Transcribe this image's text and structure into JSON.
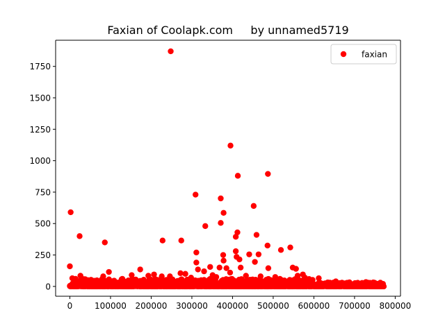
{
  "chart_data": {
    "type": "scatter",
    "title": "Faxian of Coolapk.com     by unnamed5719",
    "xlabel": "",
    "ylabel": "",
    "xlim": [
      -35000,
      813000
    ],
    "ylim": [
      -78,
      1958
    ],
    "x_ticks": [
      0,
      100000,
      200000,
      300000,
      400000,
      500000,
      600000,
      700000,
      800000
    ],
    "x_tick_labels": [
      "0",
      "100000",
      "200000",
      "300000",
      "400000",
      "500000",
      "600000",
      "700000",
      "800000"
    ],
    "y_ticks": [
      0,
      250,
      500,
      750,
      1000,
      1250,
      1500,
      1750
    ],
    "y_tick_labels": [
      "0",
      "250",
      "500",
      "750",
      "1000",
      "1250",
      "1500",
      "1750"
    ],
    "grid": false,
    "legend": {
      "position": "top-right",
      "entries": [
        "faxian"
      ]
    },
    "series": [
      {
        "name": "faxian",
        "color": "#ff0000",
        "marker": "circle",
        "points": [
          [
            248000,
            1870
          ],
          [
            395000,
            1120
          ],
          [
            487000,
            895
          ],
          [
            413000,
            880
          ],
          [
            309000,
            730
          ],
          [
            371000,
            700
          ],
          [
            452000,
            640
          ],
          [
            2000,
            590
          ],
          [
            378000,
            585
          ],
          [
            371000,
            505
          ],
          [
            333000,
            480
          ],
          [
            412000,
            430
          ],
          [
            459000,
            410
          ],
          [
            24000,
            400
          ],
          [
            408000,
            395
          ],
          [
            228000,
            365
          ],
          [
            274000,
            365
          ],
          [
            86000,
            350
          ],
          [
            486000,
            325
          ],
          [
            542000,
            310
          ],
          [
            519000,
            290
          ],
          [
            408000,
            280
          ],
          [
            311000,
            270
          ],
          [
            441000,
            255
          ],
          [
            464000,
            255
          ],
          [
            377000,
            250
          ],
          [
            410000,
            235
          ],
          [
            417000,
            215
          ],
          [
            378000,
            205
          ],
          [
            455000,
            195
          ],
          [
            311000,
            190
          ],
          [
            0,
            160
          ],
          [
            345000,
            155
          ],
          [
            368000,
            150
          ],
          [
            385000,
            145
          ],
          [
            420000,
            150
          ],
          [
            488000,
            145
          ],
          [
            548000,
            150
          ],
          [
            556000,
            140
          ],
          [
            315000,
            135
          ],
          [
            173000,
            135
          ],
          [
            96000,
            115
          ],
          [
            330000,
            120
          ],
          [
            272000,
            105
          ],
          [
            394000,
            110
          ],
          [
            284000,
            100
          ],
          [
            207000,
            95
          ],
          [
            193000,
            85
          ],
          [
            573000,
            95
          ],
          [
            560000,
            85
          ],
          [
            152000,
            90
          ],
          [
            26000,
            85
          ],
          [
            82000,
            80
          ],
          [
            226000,
            80
          ],
          [
            246000,
            80
          ],
          [
            360000,
            75
          ],
          [
            433000,
            85
          ],
          [
            469000,
            80
          ],
          [
            505000,
            75
          ],
          [
            612000,
            65
          ],
          [
            6000,
            65
          ],
          [
            14000,
            60
          ],
          [
            129000,
            60
          ],
          [
            298000,
            70
          ],
          [
            351000,
            90
          ],
          [
            578000,
            70
          ],
          [
            654000,
            40
          ],
          [
            728000,
            35
          ],
          [
            770000,
            20
          ]
        ]
      }
    ],
    "dense_band": {
      "description_values": "points clustered at low y along most of the x range",
      "x_range": [
        0,
        772000
      ],
      "y_range": [
        0,
        60
      ]
    }
  }
}
